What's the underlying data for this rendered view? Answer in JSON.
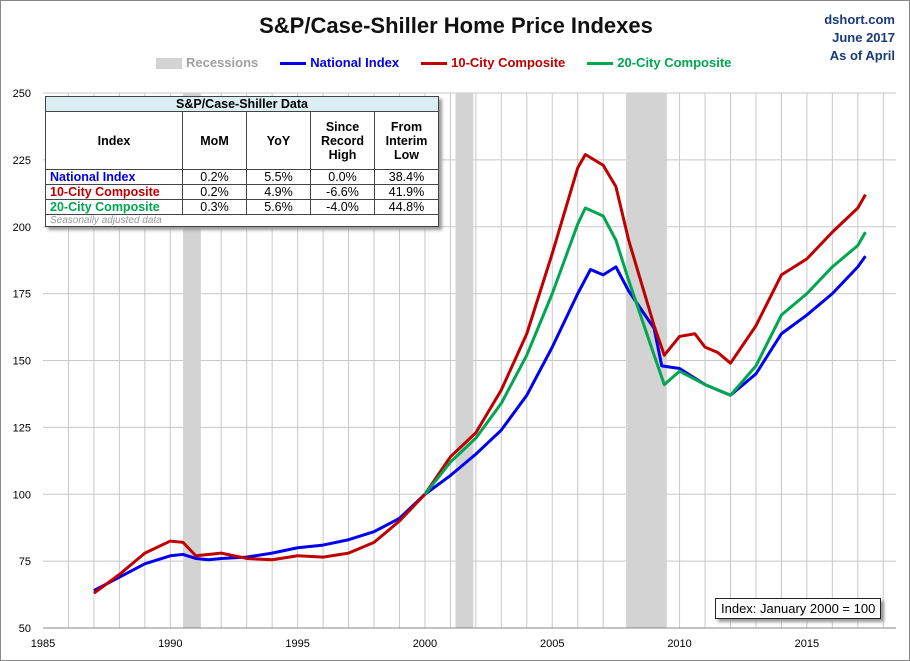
{
  "chart_data": {
    "type": "line",
    "title": "S&P/Case-Shiller Home Price Indexes",
    "source": [
      "dshort.com",
      "June 2017",
      "As of April"
    ],
    "xlim": [
      1985,
      2018.5
    ],
    "ylim": [
      50,
      250
    ],
    "xticks": [
      1985,
      1990,
      1995,
      2000,
      2005,
      2010,
      2015
    ],
    "yticks": [
      50,
      75,
      100,
      125,
      150,
      175,
      200,
      225,
      250
    ],
    "grid": true,
    "legend_placement": "top",
    "recessions_label": "Recessions",
    "recessions": [
      [
        1990.5,
        1991.2
      ],
      [
        2001.2,
        2001.9
      ],
      [
        2007.9,
        2009.5
      ]
    ],
    "annotation": "Index: January 2000 = 100",
    "series": [
      {
        "name": "National Index",
        "color": "#0000ee",
        "x": [
          1987,
          1988,
          1989,
          1990,
          1990.5,
          1991,
          1991.5,
          1992,
          1993,
          1994,
          1995,
          1996,
          1997,
          1998,
          1999,
          2000,
          2001,
          2002,
          2003,
          2004,
          2005,
          2006,
          2006.5,
          2007,
          2007.5,
          2008,
          2009,
          2009.3,
          2010,
          2011,
          2012,
          2013,
          2014,
          2015,
          2016,
          2017,
          2017.3
        ],
        "y": [
          64,
          69,
          74,
          77,
          77.5,
          76,
          75.5,
          76,
          76.5,
          78,
          80,
          81,
          83,
          86,
          91,
          100,
          107,
          115,
          124,
          137,
          155,
          175,
          184,
          182,
          185,
          176,
          162,
          148,
          147,
          141,
          137,
          145,
          160,
          167,
          175,
          185,
          189
        ]
      },
      {
        "name": "10-City Composite",
        "color": "#c00000",
        "x": [
          1987,
          1988,
          1989,
          1990,
          1990.5,
          1991,
          1992,
          1993,
          1994,
          1995,
          1996,
          1997,
          1998,
          1999,
          2000,
          2001,
          2002,
          2003,
          2004,
          2005,
          2006,
          2006.3,
          2007,
          2007.5,
          2008,
          2009,
          2009.4,
          2010,
          2010.6,
          2011,
          2011.5,
          2012,
          2013,
          2014,
          2015,
          2016,
          2017,
          2017.3
        ],
        "y": [
          63,
          70,
          78,
          82.5,
          82,
          77,
          78,
          76,
          75.5,
          77,
          76.5,
          78,
          82,
          90,
          100,
          114,
          123,
          139,
          160,
          190,
          222,
          227,
          223,
          215,
          195,
          163,
          152,
          159,
          160,
          155,
          153,
          149,
          163,
          182,
          188,
          198,
          207,
          212
        ]
      },
      {
        "name": "20-City Composite",
        "color": "#00a650",
        "x": [
          2000,
          2001,
          2002,
          2003,
          2004,
          2005,
          2006,
          2006.3,
          2007,
          2007.5,
          2008,
          2009,
          2009.4,
          2010,
          2011,
          2012,
          2013,
          2014,
          2015,
          2016,
          2017,
          2017.3
        ],
        "y": [
          100,
          112,
          121,
          134,
          152,
          175,
          201,
          207,
          204,
          195,
          180,
          152,
          141,
          146,
          141,
          137,
          148,
          167,
          175,
          185,
          193,
          198
        ]
      }
    ],
    "table": {
      "caption": "S&P/Case-Shiller Data",
      "headers": [
        "Index",
        "MoM",
        "YoY",
        "Since Record High",
        "From Interim Low"
      ],
      "rows": [
        {
          "cells": [
            "National Index",
            "0.2%",
            "5.5%",
            "0.0%",
            "38.4%"
          ],
          "color": "#0000ee"
        },
        {
          "cells": [
            "10-City Composite",
            "0.2%",
            "4.9%",
            "-6.6%",
            "41.9%"
          ],
          "color": "#c00000"
        },
        {
          "cells": [
            "20-City Composite",
            "0.3%",
            "5.6%",
            "-4.0%",
            "44.8%"
          ],
          "color": "#00a650"
        }
      ],
      "note": "Seasonally adjusted data"
    }
  }
}
